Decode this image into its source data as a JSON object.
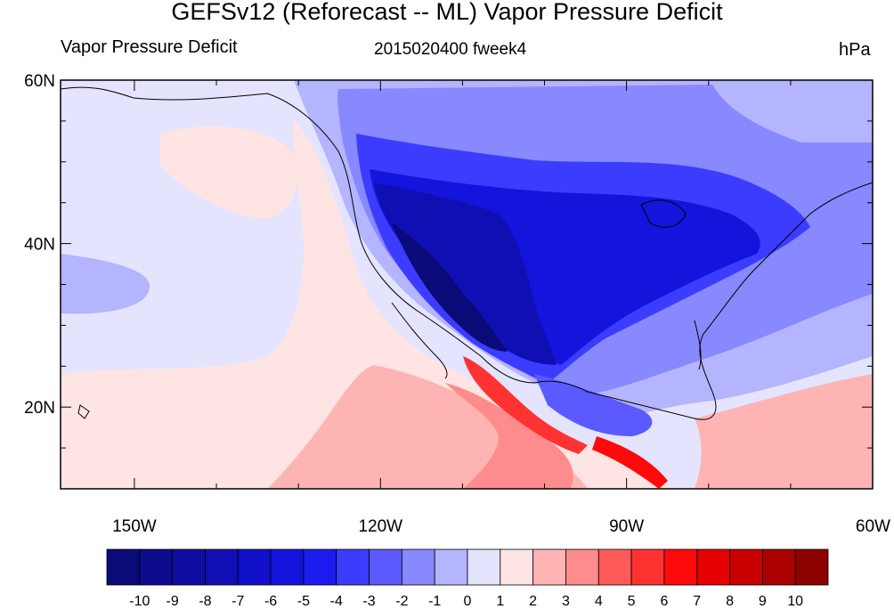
{
  "title": "GEFSv12 (Reforecast -- ML) Vapor Pressure Deficit",
  "header": {
    "left": "Vapor Pressure Deficit",
    "center": "2015020400 fweek4",
    "right": "hPa"
  },
  "map": {
    "projection": "cylindrical-equidistant",
    "lon_range": [
      -159,
      -60
    ],
    "lat_range": [
      10,
      60
    ],
    "lat_ticks": [
      {
        "lat": 60,
        "label": "60N"
      },
      {
        "lat": 40,
        "label": "40N"
      },
      {
        "lat": 20,
        "label": "20N"
      }
    ],
    "lon_ticks": [
      {
        "lon": -150,
        "label": "150W"
      },
      {
        "lon": -120,
        "label": "120W"
      },
      {
        "lon": -90,
        "label": "90W"
      },
      {
        "lon": -60,
        "label": "60W"
      }
    ],
    "field_description": "filled contours of vapor pressure deficit anomaly; strongly negative over the western and central United States, negative over Canada and the eastern US, near zero over the open Pacific, positive along the Mexican Pacific coast"
  },
  "colorbar": {
    "labels": [
      "-10",
      "-9",
      "-8",
      "-7",
      "-6",
      "-5",
      "-4",
      "-3",
      "-2",
      "-1",
      "0",
      "1",
      "2",
      "3",
      "4",
      "5",
      "6",
      "7",
      "8",
      "9",
      "10"
    ],
    "colors": [
      "#0a0a78",
      "#0c0c8c",
      "#0e0ea0",
      "#0f0fb4",
      "#1010c8",
      "#1414dc",
      "#1c1cf0",
      "#3c3cff",
      "#5a5aff",
      "#8888ff",
      "#b4b4ff",
      "#e4e4ff",
      "#ffe4e4",
      "#ffb4b4",
      "#ff8c8c",
      "#ff5a5a",
      "#ff3232",
      "#ff0a0a",
      "#e60000",
      "#c80000",
      "#aa0000",
      "#8c0000"
    ]
  }
}
